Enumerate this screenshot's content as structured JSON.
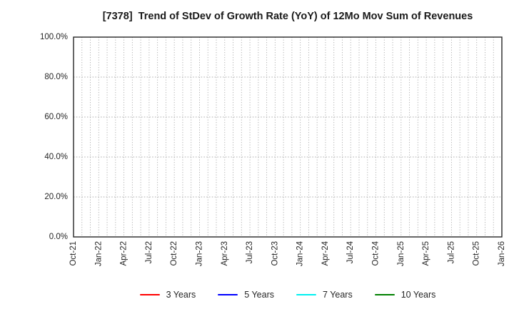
{
  "chart_data": {
    "type": "line",
    "title": "[7378]  Trend of StDev of Growth Rate (YoY) of 12Mo Mov Sum of Revenues",
    "xlabel": "",
    "ylabel": "",
    "x_tick_labels": [
      "Oct-21",
      "Jan-22",
      "Apr-22",
      "Jul-22",
      "Oct-22",
      "Jan-23",
      "Apr-23",
      "Jul-23",
      "Oct-23",
      "Jan-24",
      "Apr-24",
      "Jul-24",
      "Oct-24",
      "Jan-25",
      "Apr-25",
      "Jul-25",
      "Oct-25",
      "Jan-26"
    ],
    "months_per_major_tick": 3,
    "total_months": 51,
    "ylim": [
      0,
      100
    ],
    "y_ticks": [
      0,
      20,
      40,
      60,
      80,
      100
    ],
    "y_tick_labels": [
      "0.0%",
      "20.0%",
      "40.0%",
      "60.0%",
      "80.0%",
      "100.0%"
    ],
    "grid": true,
    "legend_position": "bottom",
    "series": [
      {
        "name": "3 Years",
        "color": "#ff0000",
        "values": []
      },
      {
        "name": "5 Years",
        "color": "#0000ff",
        "values": []
      },
      {
        "name": "7 Years",
        "color": "#00f0f0",
        "values": []
      },
      {
        "name": "10 Years",
        "color": "#008000",
        "values": []
      }
    ],
    "colors": {
      "axis_border": "#262626",
      "gridline": "#ababab",
      "tick_label": "#262626",
      "title": "#1a1a1a",
      "background": "#ffffff"
    }
  }
}
